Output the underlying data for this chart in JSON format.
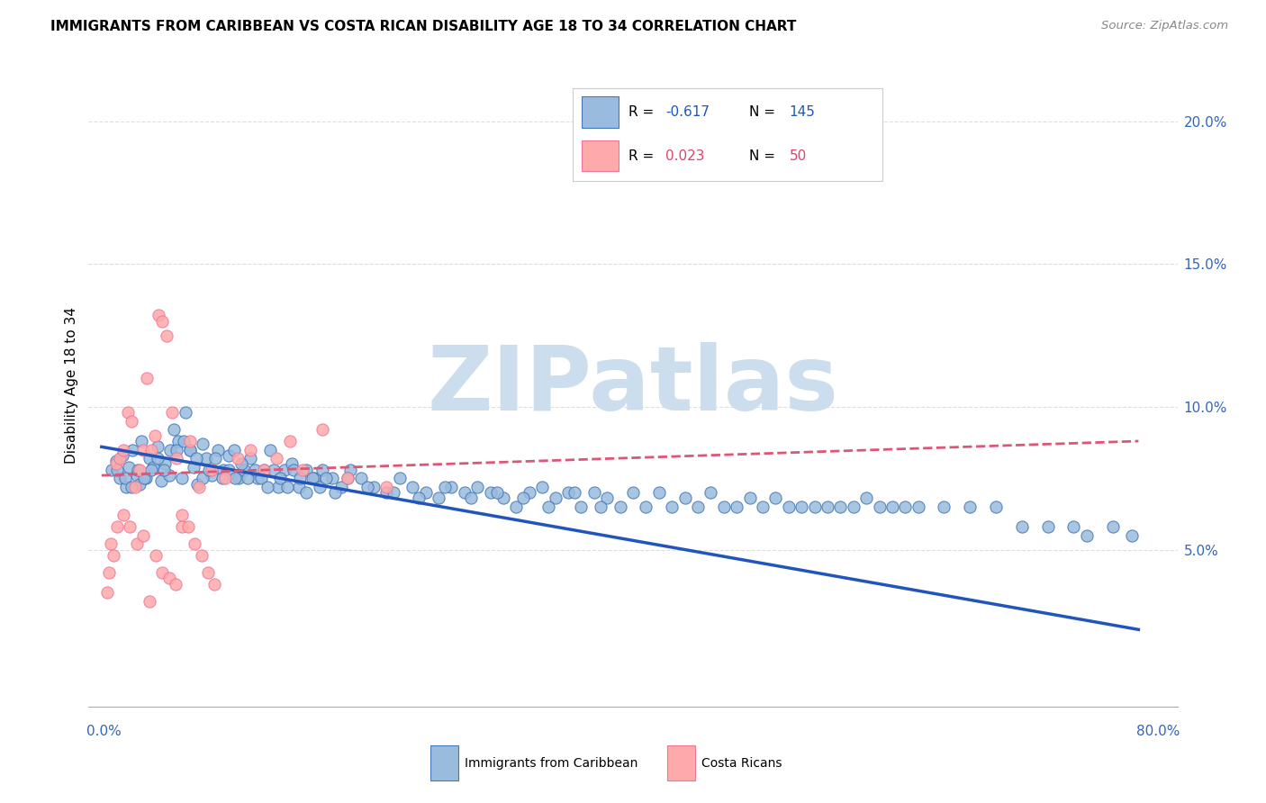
{
  "title": "IMMIGRANTS FROM CARIBBEAN VS COSTA RICAN DISABILITY AGE 18 TO 34 CORRELATION CHART",
  "source_text": "Source: ZipAtlas.com",
  "ylabel": "Disability Age 18 to 34",
  "blue_color": "#99BBDD",
  "pink_color": "#FFAAAA",
  "blue_edge_color": "#4477BB",
  "pink_edge_color": "#EE7799",
  "blue_line_color": "#2255BB",
  "pink_line_color": "#DD5577",
  "watermark": "ZIPatlas",
  "watermark_color": "#CCDDED",
  "blue_R": "-0.617",
  "blue_N": "145",
  "pink_R": "0.023",
  "pink_N": "50",
  "blue_trend_y_start": 8.6,
  "blue_trend_y_end": 2.2,
  "pink_trend_y_start": 7.6,
  "pink_trend_y_end": 8.8,
  "xlim_min": -1.0,
  "xlim_max": 83.0,
  "ylim_min": -0.5,
  "ylim_max": 22.0,
  "grid_color": "#DDDDDD",
  "right_yticks": [
    5.0,
    10.0,
    15.0,
    20.0
  ],
  "right_ytick_labels": [
    "5.0%",
    "10.0%",
    "15.0%",
    "20.0%"
  ],
  "blue_x": [
    0.8,
    1.1,
    1.4,
    1.6,
    1.9,
    2.1,
    2.4,
    2.7,
    2.9,
    3.1,
    3.4,
    3.7,
    4.0,
    4.3,
    4.6,
    4.9,
    5.2,
    5.6,
    5.9,
    6.2,
    6.5,
    6.8,
    7.1,
    7.4,
    7.8,
    8.1,
    8.5,
    9.0,
    9.4,
    9.8,
    10.2,
    10.6,
    11.0,
    11.5,
    12.0,
    12.5,
    13.0,
    13.6,
    14.1,
    14.7,
    15.2,
    15.8,
    16.4,
    17.0,
    17.8,
    18.5,
    19.2,
    20.0,
    21.0,
    22.0,
    23.0,
    24.0,
    25.0,
    26.0,
    27.0,
    28.0,
    29.0,
    30.0,
    31.0,
    32.0,
    33.0,
    34.0,
    35.0,
    36.0,
    37.0,
    38.0,
    39.0,
    40.0,
    41.0,
    42.0,
    43.0,
    44.0,
    45.0,
    46.0,
    47.0,
    48.0,
    49.0,
    50.0,
    51.0,
    52.0,
    53.0,
    54.0,
    55.0,
    56.0,
    57.0,
    58.0,
    59.0,
    60.0,
    61.0,
    62.0,
    63.0,
    65.0,
    67.0,
    69.0,
    71.0,
    73.0,
    75.0,
    76.0,
    78.0,
    79.5,
    1.2,
    1.8,
    2.3,
    2.8,
    3.3,
    3.8,
    4.3,
    4.8,
    5.3,
    5.8,
    6.3,
    6.8,
    7.3,
    7.8,
    8.3,
    8.8,
    9.3,
    9.8,
    10.3,
    10.8,
    11.3,
    11.8,
    12.3,
    12.8,
    13.3,
    13.8,
    14.3,
    14.8,
    15.3,
    15.8,
    16.3,
    16.8,
    17.3,
    18.0,
    19.0,
    20.5,
    22.5,
    24.5,
    26.5,
    28.5,
    30.5,
    32.5,
    34.5,
    36.5,
    38.5
  ],
  "blue_y": [
    7.8,
    8.1,
    7.5,
    8.3,
    7.2,
    7.9,
    8.5,
    7.6,
    7.3,
    8.8,
    7.5,
    8.2,
    7.9,
    8.6,
    7.4,
    8.0,
    7.6,
    9.2,
    8.8,
    7.5,
    9.8,
    8.5,
    7.9,
    7.3,
    8.7,
    8.2,
    7.6,
    8.5,
    7.8,
    8.3,
    8.5,
    7.5,
    7.8,
    8.2,
    7.5,
    7.8,
    8.5,
    7.2,
    7.8,
    8.0,
    7.2,
    7.8,
    7.5,
    7.8,
    7.5,
    7.2,
    7.8,
    7.5,
    7.2,
    7.0,
    7.5,
    7.2,
    7.0,
    6.8,
    7.2,
    7.0,
    7.2,
    7.0,
    6.8,
    6.5,
    7.0,
    7.2,
    6.8,
    7.0,
    6.5,
    7.0,
    6.8,
    6.5,
    7.0,
    6.5,
    7.0,
    6.5,
    6.8,
    6.5,
    7.0,
    6.5,
    6.5,
    6.8,
    6.5,
    6.8,
    6.5,
    6.5,
    6.5,
    6.5,
    6.5,
    6.5,
    6.8,
    6.5,
    6.5,
    6.5,
    6.5,
    6.5,
    6.5,
    6.5,
    5.8,
    5.8,
    5.8,
    5.5,
    5.8,
    5.5,
    7.8,
    7.5,
    7.2,
    7.8,
    7.5,
    7.8,
    8.2,
    7.8,
    8.5,
    8.5,
    8.8,
    8.5,
    8.2,
    7.5,
    7.8,
    8.2,
    7.5,
    7.8,
    7.5,
    8.0,
    7.5,
    7.8,
    7.5,
    7.2,
    7.8,
    7.5,
    7.2,
    7.8,
    7.5,
    7.0,
    7.5,
    7.2,
    7.5,
    7.0,
    7.5,
    7.2,
    7.0,
    6.8,
    7.2,
    6.8,
    7.0,
    6.8,
    6.5,
    7.0,
    6.5
  ],
  "pink_x": [
    0.4,
    0.6,
    0.9,
    1.1,
    1.4,
    1.7,
    2.0,
    2.3,
    2.6,
    2.9,
    3.2,
    3.5,
    3.8,
    4.1,
    4.4,
    4.7,
    5.0,
    5.4,
    5.8,
    6.2,
    6.8,
    7.5,
    8.5,
    9.5,
    10.5,
    11.5,
    12.5,
    13.5,
    14.5,
    15.5,
    17.0,
    19.0,
    22.0,
    0.7,
    1.2,
    1.7,
    2.2,
    2.7,
    3.2,
    3.7,
    4.2,
    4.7,
    5.2,
    5.7,
    6.2,
    6.7,
    7.2,
    7.7,
    8.2,
    8.7
  ],
  "pink_y": [
    3.5,
    4.2,
    4.8,
    8.0,
    8.2,
    8.5,
    9.8,
    9.5,
    7.2,
    7.8,
    8.5,
    11.0,
    8.5,
    9.0,
    13.2,
    13.0,
    12.5,
    9.8,
    8.2,
    5.8,
    8.8,
    7.2,
    7.8,
    7.5,
    8.2,
    8.5,
    7.8,
    8.2,
    8.8,
    7.8,
    9.2,
    7.5,
    7.2,
    5.2,
    5.8,
    6.2,
    5.8,
    5.2,
    5.5,
    3.2,
    4.8,
    4.2,
    4.0,
    3.8,
    6.2,
    5.8,
    5.2,
    4.8,
    4.2,
    3.8
  ]
}
